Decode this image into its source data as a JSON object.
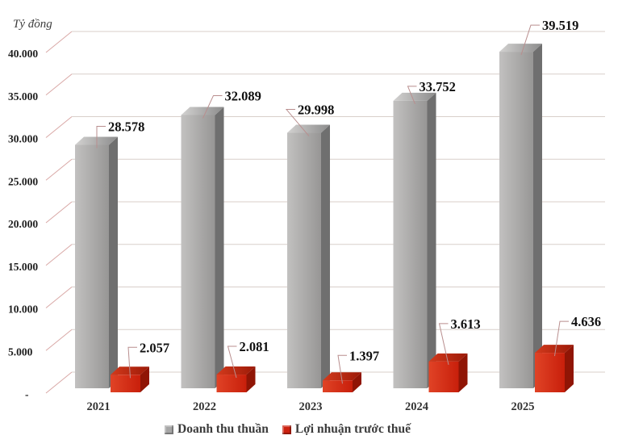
{
  "chart_data": {
    "type": "bar",
    "variant": "3d-column",
    "unit_label": "Tỷ đồng",
    "categories": [
      "2021",
      "2022",
      "2023",
      "2024",
      "2025"
    ],
    "series": [
      {
        "name": "Doanh thu thuần",
        "color": "#a6a6a6",
        "color_front_light": "#c2c1c0",
        "color_front_dark": "#979695",
        "color_side": "#6f6f6f",
        "color_top_light": "#d3d2d1",
        "color_top_dark": "#8c8c8c",
        "values": [
          28578,
          32089,
          29998,
          33752,
          39519
        ],
        "value_labels": [
          "28.578",
          "32.089",
          "29.998",
          "33.752",
          "39.519"
        ],
        "label_dx": [
          -1,
          12,
          -29,
          -10,
          11
        ],
        "label_dy": [
          -23,
          -24,
          -29,
          -18,
          -33
        ]
      },
      {
        "name": "Lợi nhuận trước thuế",
        "color": "#cc2110",
        "color_front_light": "#e04326",
        "color_front_dark": "#c81f0b",
        "color_side": "#901505",
        "color_top_light": "#d33a1c",
        "color_top_dark": "#9c1a08",
        "values": [
          2057,
          2081,
          1397,
          3613,
          4636
        ],
        "value_labels": [
          "2.057",
          "2.081",
          "1.397",
          "3.613",
          "4.636"
        ],
        "label_dx": [
          -1,
          -9,
          -4,
          -10,
          8
        ],
        "label_dy": [
          -34,
          -35,
          -31,
          -47,
          -39
        ]
      }
    ],
    "y_axis": {
      "min": 0,
      "max": 40000,
      "tick_step": 5000,
      "tick_values": [
        40000,
        35000,
        30000,
        25000,
        20000,
        15000,
        10000,
        5000,
        0
      ],
      "tick_labels": [
        "40.000",
        "35.000",
        "30.000",
        "25.000",
        "20.000",
        "15.000",
        "10.000",
        "5.000",
        "-"
      ]
    },
    "grid": true,
    "gridline_color": "#d8cfca",
    "gridline_depth_color": "#d9a8a6",
    "leader_line_color": "#b98e8e",
    "legend": {
      "position": "bottom",
      "items": [
        {
          "label": "Doanh thu thuần",
          "color": "#a6a6a6"
        },
        {
          "label": "Lợi nhuận trước thuế",
          "color": "#cc2110"
        }
      ]
    }
  }
}
